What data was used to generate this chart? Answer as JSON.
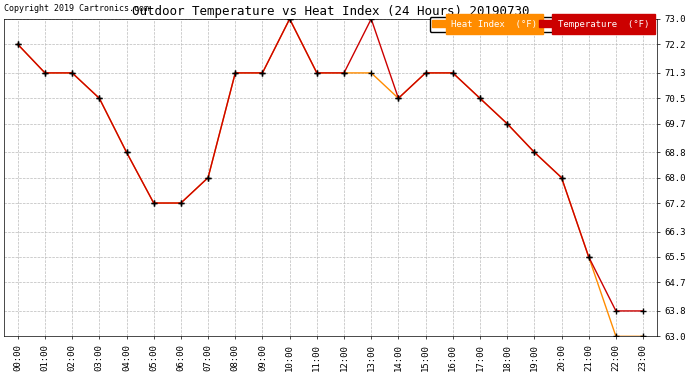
{
  "title": "Outdoor Temperature vs Heat Index (24 Hours) 20190730",
  "copyright": "Copyright 2019 Cartronics.com",
  "hours": [
    "00:00",
    "01:00",
    "02:00",
    "03:00",
    "04:00",
    "05:00",
    "06:00",
    "07:00",
    "08:00",
    "09:00",
    "10:00",
    "11:00",
    "12:00",
    "13:00",
    "14:00",
    "15:00",
    "16:00",
    "17:00",
    "18:00",
    "19:00",
    "20:00",
    "21:00",
    "22:00",
    "23:00"
  ],
  "heat_index": [
    72.2,
    71.3,
    71.3,
    70.5,
    68.8,
    67.2,
    67.2,
    68.0,
    71.3,
    71.3,
    73.0,
    71.3,
    71.3,
    71.3,
    70.5,
    71.3,
    71.3,
    70.5,
    69.7,
    68.8,
    68.0,
    65.5,
    63.0,
    63.0
  ],
  "temperature": [
    72.2,
    71.3,
    71.3,
    70.5,
    68.8,
    67.2,
    67.2,
    68.0,
    71.3,
    71.3,
    73.0,
    71.3,
    71.3,
    73.0,
    70.5,
    71.3,
    71.3,
    70.5,
    69.7,
    68.8,
    68.0,
    65.5,
    63.8,
    63.8
  ],
  "heat_index_color": "#FF8C00",
  "temperature_color": "#CC0000",
  "ylim_min": 63.0,
  "ylim_max": 73.0,
  "yticks": [
    73.0,
    72.2,
    71.3,
    70.5,
    69.7,
    68.8,
    68.0,
    67.2,
    66.3,
    65.5,
    64.7,
    63.8,
    63.0
  ],
  "bg_color": "#FFFFFF",
  "grid_color": "#BBBBBB"
}
